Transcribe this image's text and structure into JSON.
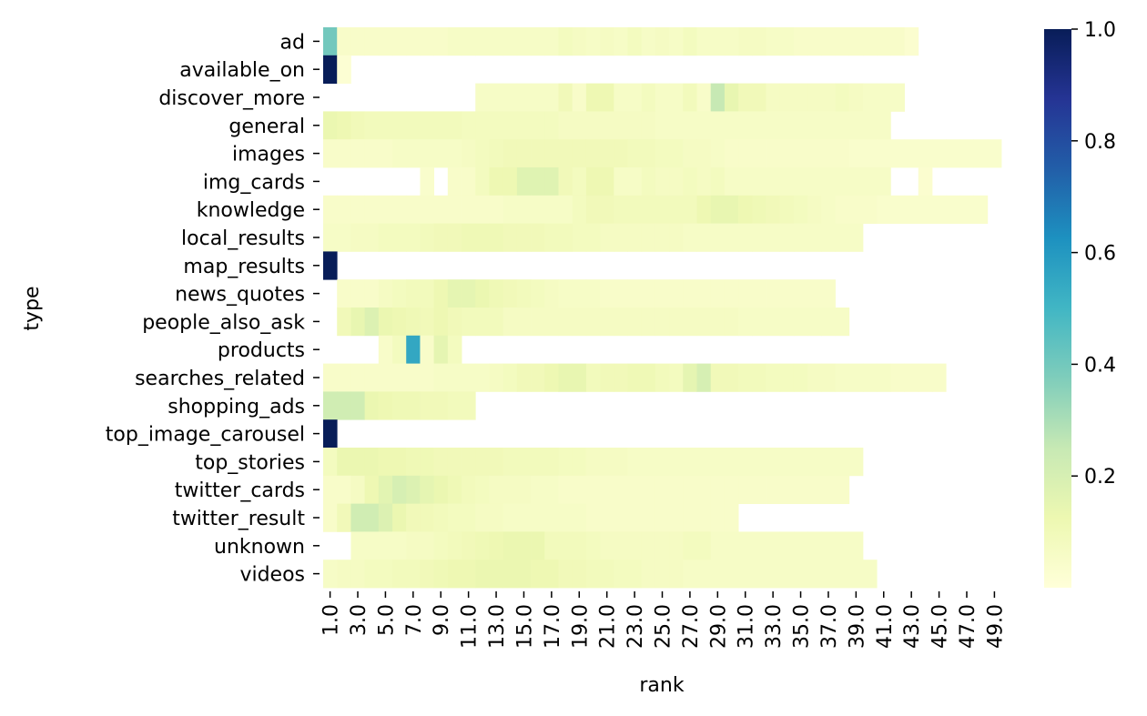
{
  "chart_data": {
    "type": "heatmap",
    "xlabel": "rank",
    "ylabel": "type",
    "x_ticks": [
      "1.0",
      "3.0",
      "5.0",
      "7.0",
      "9.0",
      "11.0",
      "13.0",
      "15.0",
      "17.0",
      "19.0",
      "21.0",
      "23.0",
      "25.0",
      "27.0",
      "29.0",
      "31.0",
      "33.0",
      "35.0",
      "37.0",
      "39.0",
      "41.0",
      "43.0",
      "45.0",
      "47.0",
      "49.0"
    ],
    "x_start": 1,
    "x_count": 49,
    "rows": [
      "ad",
      "available_on",
      "discover_more",
      "general",
      "images",
      "img_cards",
      "knowledge",
      "local_results",
      "map_results",
      "news_quotes",
      "people_also_ask",
      "products",
      "searches_related",
      "shopping_ads",
      "top_image_carousel",
      "top_stories",
      "twitter_cards",
      "twitter_result",
      "unknown",
      "videos"
    ],
    "values": [
      [
        0.4,
        0.05,
        0.05,
        0.05,
        0.05,
        0.05,
        0.05,
        0.05,
        0.05,
        0.06,
        0.06,
        0.06,
        0.06,
        0.06,
        0.06,
        0.06,
        0.06,
        0.08,
        0.07,
        0.06,
        0.07,
        0.06,
        0.08,
        0.06,
        0.07,
        0.06,
        0.08,
        0.06,
        0.06,
        0.06,
        0.07,
        0.07,
        0.06,
        0.06,
        0.05,
        0.05,
        0.05,
        0.05,
        0.05,
        0.05,
        0.05,
        0.05,
        0.03
      ],
      [
        1.0,
        0.02
      ],
      [
        null,
        null,
        null,
        null,
        null,
        null,
        null,
        null,
        null,
        null,
        null,
        0.06,
        0.06,
        0.06,
        0.06,
        0.06,
        0.06,
        0.1,
        0.05,
        0.12,
        0.12,
        0.06,
        0.06,
        0.08,
        0.06,
        0.06,
        0.09,
        0.05,
        0.25,
        0.14,
        0.1,
        0.1,
        0.07,
        0.07,
        0.07,
        0.07,
        0.07,
        0.08,
        0.07,
        0.06,
        0.06,
        0.06
      ],
      [
        0.13,
        0.12,
        0.1,
        0.09,
        0.09,
        0.09,
        0.09,
        0.09,
        0.09,
        0.09,
        0.08,
        0.08,
        0.08,
        0.08,
        0.08,
        0.08,
        0.08,
        0.07,
        0.07,
        0.07,
        0.07,
        0.07,
        0.07,
        0.07,
        0.06,
        0.06,
        0.06,
        0.06,
        0.06,
        0.06,
        0.06,
        0.06,
        0.06,
        0.06,
        0.06,
        0.06,
        0.06,
        0.06,
        0.06,
        0.06,
        0.06
      ],
      [
        0.05,
        0.05,
        0.05,
        0.05,
        0.05,
        0.06,
        0.06,
        0.06,
        0.06,
        0.06,
        0.07,
        0.08,
        0.09,
        0.1,
        0.1,
        0.1,
        0.1,
        0.1,
        0.1,
        0.1,
        0.1,
        0.1,
        0.09,
        0.09,
        0.08,
        0.08,
        0.07,
        0.07,
        0.06,
        0.05,
        0.05,
        0.05,
        0.05,
        0.05,
        0.05,
        0.05,
        0.05,
        0.05,
        0.04,
        0.04,
        0.04,
        0.04,
        0.04,
        0.04,
        0.04,
        0.04,
        0.04,
        0.04,
        0.04
      ],
      [
        null,
        null,
        null,
        null,
        null,
        null,
        null,
        0.04,
        null,
        0.05,
        0.05,
        0.08,
        0.12,
        0.12,
        0.17,
        0.17,
        0.17,
        0.1,
        0.08,
        0.12,
        0.12,
        0.06,
        0.06,
        0.08,
        0.07,
        0.07,
        0.08,
        0.07,
        0.08,
        0.06,
        0.06,
        0.06,
        0.06,
        0.06,
        0.06,
        0.06,
        0.06,
        0.06,
        0.06,
        0.06,
        0.06,
        null,
        null,
        0.03
      ],
      [
        0.05,
        0.05,
        0.05,
        0.05,
        0.05,
        0.05,
        0.05,
        0.05,
        0.05,
        0.05,
        0.05,
        0.05,
        0.05,
        0.06,
        0.06,
        0.06,
        0.06,
        0.06,
        0.08,
        0.1,
        0.1,
        0.09,
        0.09,
        0.09,
        0.09,
        0.09,
        0.09,
        0.12,
        0.14,
        0.14,
        0.12,
        0.11,
        0.1,
        0.09,
        0.08,
        0.07,
        0.06,
        0.05,
        0.05,
        0.05,
        0.04,
        0.04,
        0.04,
        0.04,
        0.04,
        0.04,
        0.04,
        0.04
      ],
      [
        0.06,
        0.06,
        0.07,
        0.07,
        0.08,
        0.08,
        0.08,
        0.09,
        0.1,
        0.1,
        0.11,
        0.11,
        0.11,
        0.1,
        0.1,
        0.1,
        0.09,
        0.09,
        0.08,
        0.08,
        0.07,
        0.07,
        0.07,
        0.07,
        0.07,
        0.07,
        0.06,
        0.06,
        0.06,
        0.06,
        0.06,
        0.06,
        0.06,
        0.06,
        0.06,
        0.06,
        0.06,
        0.06,
        0.06
      ],
      [
        1.0
      ],
      [
        null,
        0.05,
        0.05,
        0.05,
        0.07,
        0.08,
        0.09,
        0.09,
        0.12,
        0.15,
        0.15,
        0.13,
        0.11,
        0.1,
        0.09,
        0.08,
        0.07,
        0.06,
        0.06,
        0.06,
        0.05,
        0.05,
        0.05,
        0.05,
        0.05,
        0.05,
        0.05,
        0.05,
        0.05,
        0.05,
        0.05,
        0.05,
        0.05,
        0.05,
        0.05,
        0.05,
        0.05
      ],
      [
        null,
        0.1,
        0.14,
        0.18,
        0.13,
        0.12,
        0.11,
        0.1,
        0.12,
        0.1,
        0.09,
        0.09,
        0.09,
        0.07,
        0.07,
        0.07,
        0.07,
        0.07,
        0.07,
        0.07,
        0.07,
        0.07,
        0.07,
        0.07,
        0.07,
        0.07,
        0.07,
        0.07,
        0.07,
        0.07,
        0.06,
        0.06,
        0.06,
        0.06,
        0.06,
        0.06,
        0.06,
        0.06
      ],
      [
        null,
        null,
        null,
        null,
        0.05,
        0.08,
        0.55,
        0.05,
        0.15,
        0.08
      ],
      [
        0.05,
        0.05,
        0.05,
        0.05,
        0.05,
        0.05,
        0.05,
        0.05,
        0.06,
        0.06,
        0.06,
        0.06,
        0.07,
        0.08,
        0.1,
        0.1,
        0.12,
        0.14,
        0.14,
        0.09,
        0.1,
        0.1,
        0.11,
        0.11,
        0.09,
        0.08,
        0.15,
        0.2,
        0.1,
        0.1,
        0.09,
        0.09,
        0.08,
        0.08,
        0.08,
        0.07,
        0.07,
        0.06,
        0.06,
        0.06,
        0.06,
        0.05,
        0.05,
        0.05,
        0.05
      ],
      [
        0.22,
        0.22,
        0.22,
        0.13,
        0.12,
        0.11,
        0.11,
        0.1,
        0.1,
        0.09,
        0.09
      ],
      [
        1.0
      ],
      [
        0.08,
        0.13,
        0.13,
        0.13,
        0.12,
        0.12,
        0.11,
        0.11,
        0.1,
        0.1,
        0.1,
        0.1,
        0.1,
        0.09,
        0.09,
        0.09,
        0.09,
        0.08,
        0.08,
        0.07,
        0.07,
        0.07,
        0.06,
        0.06,
        0.06,
        0.06,
        0.06,
        0.06,
        0.06,
        0.06,
        0.06,
        0.06,
        0.06,
        0.06,
        0.06,
        0.06,
        0.06,
        0.06,
        0.06
      ],
      [
        0.05,
        0.05,
        0.07,
        0.12,
        0.16,
        0.2,
        0.18,
        0.15,
        0.13,
        0.11,
        0.09,
        0.08,
        0.07,
        0.07,
        0.07,
        0.06,
        0.06,
        0.05,
        0.05,
        0.05,
        0.05,
        0.05,
        0.05,
        0.05,
        0.05,
        0.05,
        0.05,
        0.05,
        0.05,
        0.05,
        0.05,
        0.05,
        0.05,
        0.05,
        0.05,
        0.05,
        0.05,
        0.05
      ],
      [
        0.05,
        0.1,
        0.22,
        0.22,
        0.18,
        0.13,
        0.1,
        0.1,
        0.09,
        0.08,
        0.08,
        0.07,
        0.07,
        0.06,
        0.06,
        0.06,
        0.06,
        0.06,
        0.06,
        0.05,
        0.05,
        0.05,
        0.05,
        0.05,
        0.05,
        0.05,
        0.05,
        0.05,
        0.05,
        0.05
      ],
      [
        null,
        null,
        0.06,
        0.06,
        0.06,
        0.06,
        0.07,
        0.07,
        0.08,
        0.09,
        0.1,
        0.11,
        0.12,
        0.13,
        0.13,
        0.13,
        0.09,
        0.09,
        0.09,
        0.08,
        0.07,
        0.07,
        0.07,
        0.07,
        0.07,
        0.07,
        0.08,
        0.08,
        0.06,
        0.06,
        0.06,
        0.06,
        0.06,
        0.06,
        0.06,
        0.06,
        0.06,
        0.06,
        0.06
      ],
      [
        0.06,
        0.07,
        0.07,
        0.08,
        0.08,
        0.09,
        0.09,
        0.1,
        0.11,
        0.12,
        0.12,
        0.13,
        0.13,
        0.13,
        0.13,
        0.12,
        0.12,
        0.1,
        0.1,
        0.09,
        0.09,
        0.08,
        0.08,
        0.07,
        0.07,
        0.07,
        0.06,
        0.06,
        0.06,
        0.06,
        0.06,
        0.06,
        0.06,
        0.06,
        0.06,
        0.06,
        0.06,
        0.06,
        0.06,
        0.06
      ]
    ],
    "colorbar": {
      "min": 0.0,
      "max": 1.0,
      "ticks": [
        "0.2",
        "0.4",
        "0.6",
        "0.8",
        "1.0"
      ],
      "colormap": "YlGnBu",
      "colormap_stops": [
        "#ffffd9",
        "#edf8b1",
        "#c7e9b4",
        "#7fcdbb",
        "#41b6c4",
        "#1d91c0",
        "#225ea8",
        "#253494",
        "#081d58"
      ]
    },
    "grid": false,
    "legend": "colorbar-right"
  }
}
